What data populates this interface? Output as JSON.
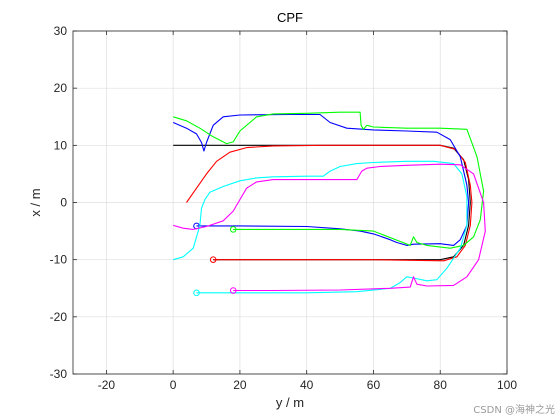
{
  "chart_data": {
    "type": "line",
    "title": "CPF",
    "xlabel": "y / m",
    "ylabel": "x / m",
    "xlim": [
      -30,
      100
    ],
    "ylim": [
      -30,
      30
    ],
    "xticks": [
      -20,
      0,
      20,
      40,
      60,
      80,
      100
    ],
    "yticks": [
      -30,
      -20,
      -10,
      0,
      10,
      20,
      30
    ],
    "grid": true,
    "series": [
      {
        "color": "#000000",
        "points": [
          [
            0,
            10
          ],
          [
            80,
            10
          ],
          [
            84,
            9.5
          ],
          [
            87,
            7.5
          ],
          [
            88.5,
            4
          ],
          [
            89,
            0
          ],
          [
            88.5,
            -4
          ],
          [
            87,
            -7.5
          ],
          [
            84,
            -9.5
          ],
          [
            80,
            -10
          ],
          [
            12,
            -10
          ]
        ]
      },
      {
        "color": "#ff0000",
        "points": [
          [
            4,
            0
          ],
          [
            7,
            2.5
          ],
          [
            10,
            5
          ],
          [
            13,
            7.2
          ],
          [
            17,
            8.8
          ],
          [
            22,
            9.6
          ],
          [
            30,
            9.9
          ],
          [
            45,
            10
          ],
          [
            80,
            10
          ],
          [
            84.5,
            9.3
          ],
          [
            87.5,
            7
          ],
          [
            89,
            3
          ],
          [
            89.5,
            0
          ],
          [
            89,
            -4
          ],
          [
            87.5,
            -7.5
          ],
          [
            85,
            -9.5
          ],
          [
            81,
            -10.2
          ],
          [
            60,
            -10
          ],
          [
            12,
            -10
          ]
        ],
        "marker": [
          12,
          -10
        ]
      },
      {
        "color": "#0000ff",
        "points": [
          [
            0,
            14
          ],
          [
            4,
            13
          ],
          [
            7,
            12
          ],
          [
            8.5,
            10.5
          ],
          [
            9.2,
            9
          ],
          [
            10,
            10.5
          ],
          [
            12,
            13.5
          ],
          [
            15,
            15
          ],
          [
            20,
            15.3
          ],
          [
            35,
            15.4
          ],
          [
            44,
            15.4
          ],
          [
            47,
            14
          ],
          [
            52,
            13
          ],
          [
            60,
            12.7
          ],
          [
            70,
            12.5
          ],
          [
            79,
            12.3
          ],
          [
            83,
            11
          ],
          [
            86,
            8
          ],
          [
            88,
            3
          ],
          [
            88.5,
            0
          ],
          [
            88,
            -4
          ],
          [
            86,
            -6.5
          ],
          [
            84,
            -7.5
          ],
          [
            80,
            -7.2
          ],
          [
            72,
            -7.3
          ],
          [
            70,
            -7.5
          ],
          [
            67,
            -7
          ],
          [
            65,
            -6.5
          ],
          [
            60,
            -5.5
          ],
          [
            56,
            -5
          ],
          [
            50,
            -4.6
          ],
          [
            40,
            -4.2
          ],
          [
            20,
            -4.1
          ],
          [
            10,
            -4.1
          ],
          [
            7,
            -4.1
          ]
        ],
        "marker": [
          7,
          -4.1
        ]
      },
      {
        "color": "#00ff00",
        "points": [
          [
            0,
            15
          ],
          [
            4,
            14.3
          ],
          [
            8,
            13
          ],
          [
            12,
            11.5
          ],
          [
            16,
            10.3
          ],
          [
            18,
            10.6
          ],
          [
            20,
            12.5
          ],
          [
            25,
            15
          ],
          [
            30,
            15.5
          ],
          [
            40,
            15.6
          ],
          [
            50,
            15.8
          ],
          [
            56,
            15.8
          ],
          [
            56.3,
            13.5
          ],
          [
            57,
            12.8
          ],
          [
            58,
            13.5
          ],
          [
            60,
            13.2
          ],
          [
            70,
            13
          ],
          [
            80,
            13
          ],
          [
            88,
            12.8
          ],
          [
            91,
            8
          ],
          [
            93,
            2
          ],
          [
            92,
            -3
          ],
          [
            90,
            -6
          ],
          [
            87,
            -7.5
          ],
          [
            83,
            -8
          ],
          [
            76,
            -7.5
          ],
          [
            73,
            -7
          ],
          [
            72,
            -6
          ],
          [
            71,
            -7.5
          ],
          [
            60,
            -5
          ],
          [
            50,
            -4.7
          ],
          [
            30,
            -4.7
          ],
          [
            18,
            -4.7
          ]
        ],
        "marker": [
          18,
          -4.7
        ]
      },
      {
        "color": "#00ffff",
        "points": [
          [
            0,
            -10
          ],
          [
            3,
            -9.5
          ],
          [
            6,
            -8
          ],
          [
            8,
            -4
          ],
          [
            8.5,
            -1
          ],
          [
            9.5,
            0.5
          ],
          [
            11,
            1.8
          ],
          [
            15,
            2.8
          ],
          [
            20,
            3.8
          ],
          [
            25,
            4.3
          ],
          [
            30,
            4.5
          ],
          [
            40,
            4.6
          ],
          [
            45,
            4.6
          ],
          [
            47,
            5.5
          ],
          [
            50,
            6.3
          ],
          [
            55,
            6.8
          ],
          [
            60,
            7
          ],
          [
            70,
            7.2
          ],
          [
            78,
            7.2
          ],
          [
            84,
            6.8
          ],
          [
            86.5,
            5
          ],
          [
            88,
            1
          ],
          [
            88,
            -4
          ],
          [
            86,
            -8
          ],
          [
            82,
            -11.5
          ],
          [
            79,
            -13.5
          ],
          [
            76,
            -13.7
          ],
          [
            72,
            -13.2
          ],
          [
            70,
            -13
          ],
          [
            68,
            -14
          ],
          [
            65,
            -15
          ],
          [
            55,
            -15.6
          ],
          [
            40,
            -15.8
          ],
          [
            25,
            -15.8
          ],
          [
            7,
            -15.8
          ]
        ],
        "marker": [
          7,
          -15.8
        ]
      },
      {
        "color": "#ff00ff",
        "points": [
          [
            0,
            -4
          ],
          [
            3,
            -4.5
          ],
          [
            6,
            -4.7
          ],
          [
            10,
            -4.2
          ],
          [
            15,
            -3.2
          ],
          [
            18,
            -1.5
          ],
          [
            20,
            0.5
          ],
          [
            22,
            2.5
          ],
          [
            25,
            3.6
          ],
          [
            30,
            4
          ],
          [
            40,
            4
          ],
          [
            55,
            4
          ],
          [
            56.5,
            5.5
          ],
          [
            58,
            6
          ],
          [
            62,
            6.3
          ],
          [
            70,
            6.5
          ],
          [
            80,
            6.7
          ],
          [
            86,
            6.6
          ],
          [
            90,
            5
          ],
          [
            93,
            0
          ],
          [
            93.5,
            -5
          ],
          [
            91.5,
            -10
          ],
          [
            88,
            -13
          ],
          [
            84,
            -14.5
          ],
          [
            76,
            -14.6
          ],
          [
            73,
            -14.3
          ],
          [
            72,
            -13
          ],
          [
            71,
            -14.8
          ],
          [
            65,
            -15
          ],
          [
            50,
            -15.3
          ],
          [
            30,
            -15.4
          ],
          [
            18,
            -15.4
          ]
        ],
        "marker": [
          18,
          -15.4
        ]
      }
    ]
  },
  "watermark": "CSDN @海神之光"
}
